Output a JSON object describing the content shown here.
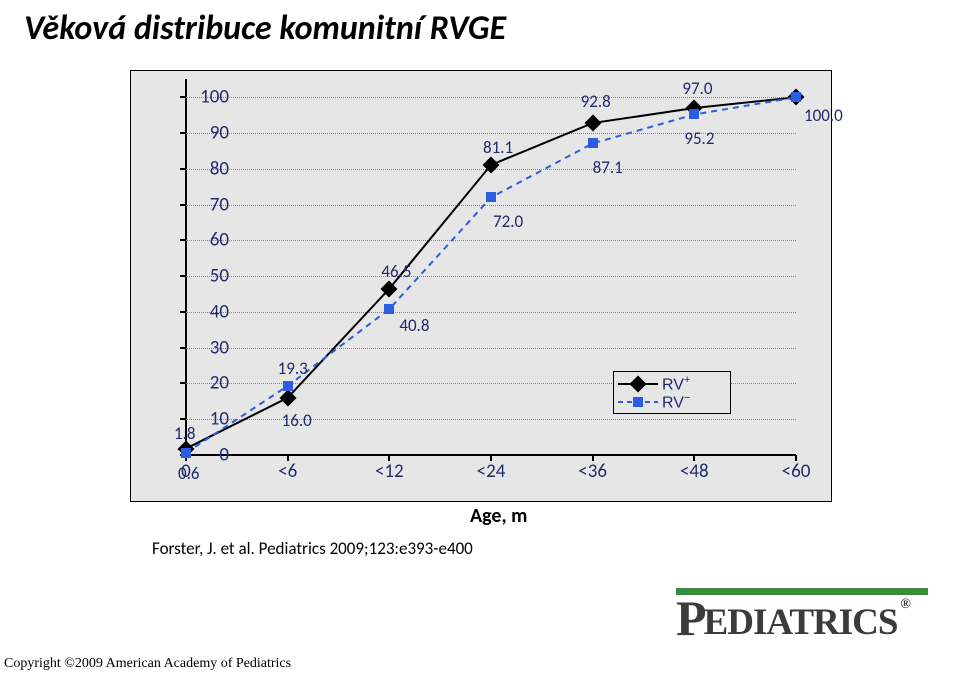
{
  "page": {
    "title": "Věková distribuce komunitní RVGE",
    "age_label": "Age, m",
    "citation": "Forster, J. et al. Pediatrics 2009;123:e393-e400",
    "copyright": "Copyright ©2009 American Academy of Pediatrics",
    "logo_text": "PEDIATRICS",
    "logo_reg": "®"
  },
  "chart": {
    "type": "line",
    "background_color": "#e6e6e6",
    "grid_color": "#888888",
    "axis_color": "#000000",
    "label_color": "#232a6c",
    "label_fontsize": 19,
    "categories": [
      "0",
      "<6",
      "<12",
      "<24",
      "<36",
      "<48",
      "<60"
    ],
    "x_index": [
      0,
      1,
      2,
      3,
      4,
      5,
      6
    ],
    "y_ticks": [
      0,
      10,
      20,
      30,
      40,
      50,
      60,
      70,
      80,
      90,
      100
    ],
    "ylim": [
      0,
      104
    ],
    "series": [
      {
        "name": "RV+",
        "color": "#000000",
        "marker": "diamond",
        "dash": "solid",
        "line_width": 2,
        "values": [
          1.8,
          16.0,
          46.5,
          81.1,
          92.8,
          97.0,
          100.0
        ],
        "labels": [
          "1.8",
          "16.0",
          "46.5",
          "81.1",
          "92.8",
          "97.0",
          "100.0"
        ],
        "label_pos": [
          "above",
          "below",
          "above",
          "above",
          "above",
          "above",
          "right"
        ]
      },
      {
        "name": "RV−",
        "color": "#2b5de0",
        "marker": "square",
        "dash": "dash",
        "line_width": 2,
        "values": [
          0.6,
          19.3,
          40.8,
          72.0,
          87.1,
          95.2,
          100.0
        ],
        "labels": [
          "0.6",
          "19.3",
          "40.8",
          "72.0",
          "87.1",
          "95.2",
          ""
        ],
        "label_pos": [
          "below",
          "above",
          "below",
          "below",
          "below",
          "below",
          ""
        ]
      }
    ],
    "legend": {
      "items": [
        {
          "label": "RV",
          "sup": "+",
          "series": 0
        },
        {
          "label": "RV",
          "sup": "−",
          "series": 1
        }
      ]
    }
  }
}
